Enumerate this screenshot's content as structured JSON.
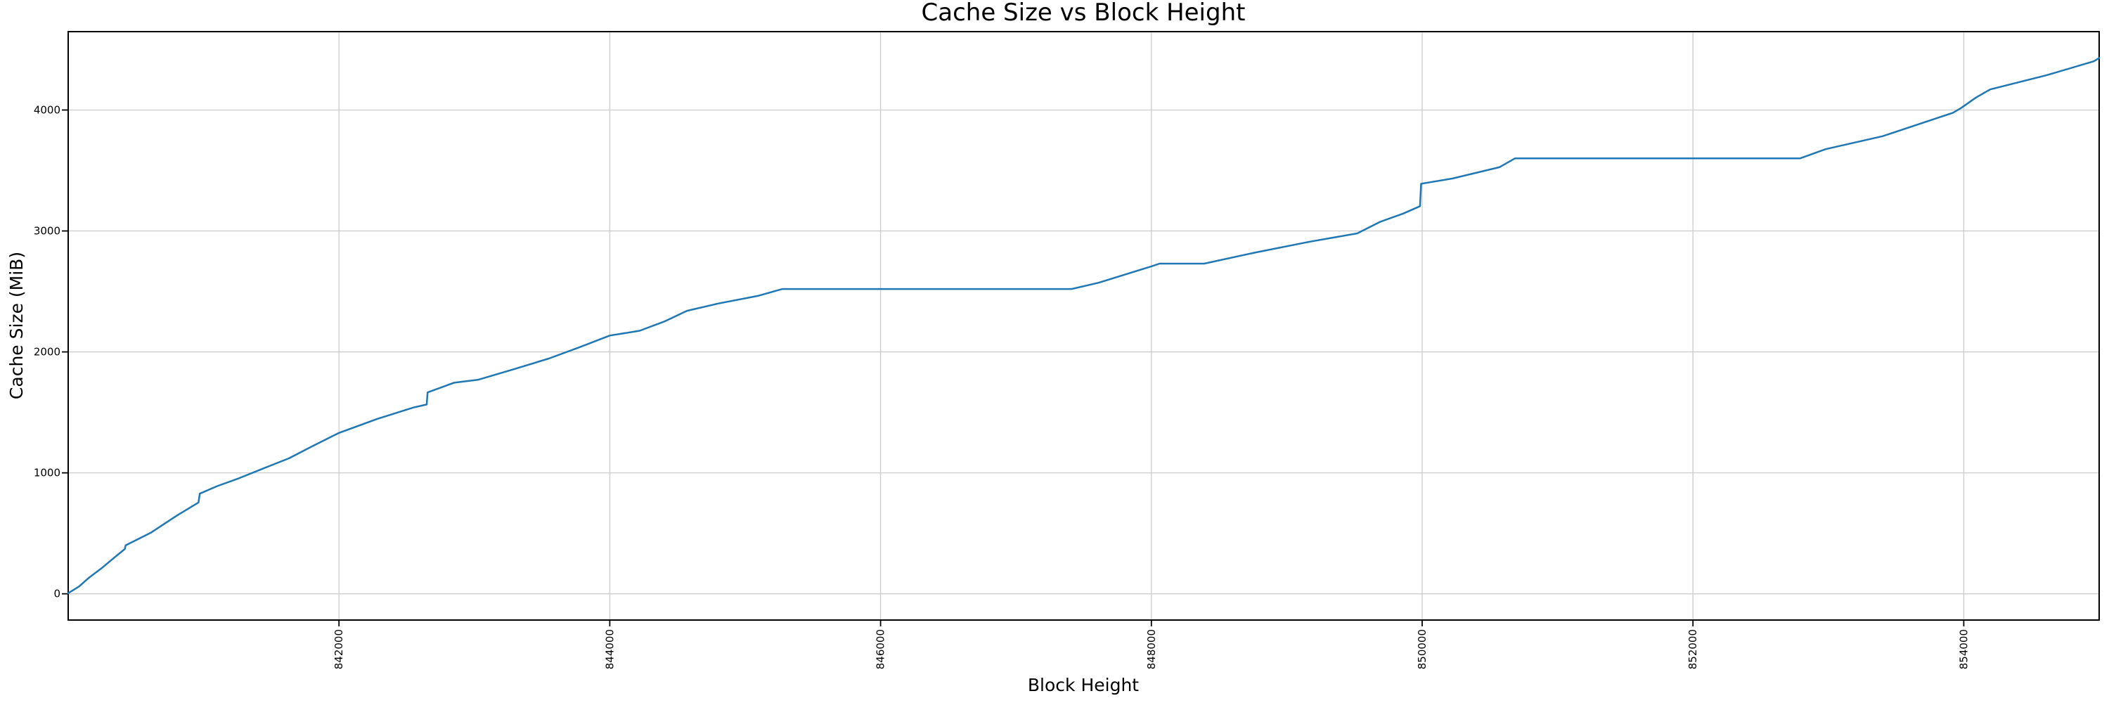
{
  "figure": {
    "background": "#ffffff",
    "spine_color": "#000000"
  },
  "chart_data": {
    "type": "line",
    "title": "Cache Size vs Block Height",
    "xlabel": "Block Height",
    "ylabel": "Cache Size (MiB)",
    "x_ticks": [
      842000,
      844000,
      846000,
      848000,
      850000,
      852000,
      854000
    ],
    "x_tick_labels": [
      "842000",
      "844000",
      "846000",
      "848000",
      "850000",
      "852000",
      "854000"
    ],
    "y_ticks": [
      0,
      1000,
      2000,
      3000,
      4000
    ],
    "y_tick_labels": [
      "0",
      "1000",
      "2000",
      "3000",
      "4000"
    ],
    "xlim": [
      840000,
      855000
    ],
    "ylim": [
      -217,
      4648
    ],
    "grid": true,
    "grid_color": "#cccccc",
    "legend": "none",
    "x_tick_rotation": 90,
    "line_color": "#1f77b4",
    "line_width": 2.5,
    "series": [
      {
        "name": "cache-size",
        "x": [
          840000,
          840080,
          840150,
          840250,
          840330,
          840418,
          840424,
          840610,
          840800,
          840962,
          840972,
          841100,
          841260,
          841450,
          841630,
          841820,
          842000,
          842280,
          842550,
          842648,
          842654,
          842850,
          843030,
          843300,
          843550,
          843780,
          844000,
          844220,
          844400,
          844570,
          844800,
          845100,
          845275,
          847410,
          847610,
          848000,
          848060,
          848390,
          848760,
          849170,
          849520,
          849690,
          849860,
          849984,
          849992,
          850225,
          850570,
          850685,
          852790,
          852980,
          853400,
          853920,
          853980,
          854090,
          854195,
          854610,
          854960,
          855000
        ],
        "y": [
          5,
          60,
          130,
          215,
          290,
          370,
          400,
          505,
          645,
          755,
          828,
          890,
          955,
          1040,
          1120,
          1230,
          1330,
          1445,
          1540,
          1565,
          1665,
          1745,
          1770,
          1860,
          1945,
          2040,
          2135,
          2175,
          2250,
          2340,
          2400,
          2465,
          2520,
          2520,
          2572,
          2707,
          2730,
          2730,
          2820,
          2911,
          2980,
          3076,
          3144,
          3205,
          3390,
          3434,
          3527,
          3600,
          3600,
          3676,
          3783,
          3977,
          4016,
          4103,
          4170,
          4287,
          4403,
          4430
        ]
      }
    ]
  }
}
